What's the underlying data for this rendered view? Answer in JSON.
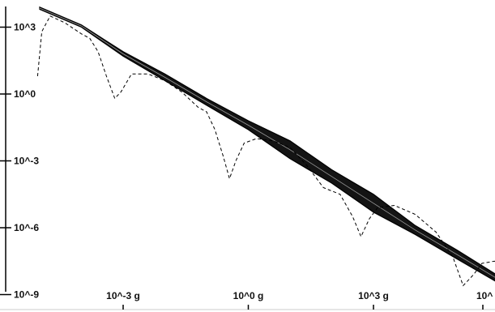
{
  "chart_data": {
    "type": "line",
    "title": "",
    "xlabel": "",
    "ylabel": "",
    "x_scale": "log",
    "y_scale": "log",
    "xlim": [
      "1e-5",
      "1e4"
    ],
    "ylim": [
      "1e-9",
      "1e4"
    ],
    "x_ticks": [
      {
        "value": "1e-3",
        "label": "10^-3 g"
      },
      {
        "value": "1e0",
        "label": "10^0 g"
      },
      {
        "value": "1e3",
        "label": "10^3 g"
      },
      {
        "value": "1e4",
        "label": "10^"
      }
    ],
    "y_ticks": [
      {
        "value": "1e3",
        "label": "10^3"
      },
      {
        "value": "1e0",
        "label": "10^0"
      },
      {
        "value": "1e-3",
        "label": "10^-3"
      },
      {
        "value": "1e-6",
        "label": "10^-6"
      },
      {
        "value": "1e-9",
        "label": "10^-9"
      }
    ],
    "grid": false,
    "legend": "none",
    "series": [
      {
        "style": "solid",
        "color": "#000000",
        "band_log10_upper": [
          [
            -5.0,
            3.9
          ],
          [
            -4.0,
            3.1
          ],
          [
            -3.0,
            1.9
          ],
          [
            -2.0,
            0.9
          ],
          [
            -1.0,
            -0.2
          ],
          [
            0.0,
            -1.2
          ],
          [
            1.0,
            -2.1
          ],
          [
            2.0,
            -3.4
          ],
          [
            3.0,
            -4.5
          ],
          [
            4.0,
            -5.9
          ],
          [
            5.0,
            -7.0
          ],
          [
            6.2,
            -8.4
          ]
        ],
        "band_log10_lower": [
          [
            -5.0,
            3.8
          ],
          [
            -4.0,
            3.0
          ],
          [
            -3.0,
            1.7
          ],
          [
            -2.0,
            0.6
          ],
          [
            -1.0,
            -0.5
          ],
          [
            0.0,
            -1.6
          ],
          [
            1.0,
            -2.9
          ],
          [
            2.0,
            -4.0
          ],
          [
            3.0,
            -5.3
          ],
          [
            4.0,
            -6.3
          ],
          [
            5.0,
            -7.4
          ],
          [
            6.2,
            -8.7
          ]
        ]
      },
      {
        "style": "dashed",
        "color": "#000000",
        "points_log10": [
          [
            -5.05,
            0.8
          ],
          [
            -4.95,
            2.8
          ],
          [
            -4.75,
            3.5
          ],
          [
            -4.4,
            3.2
          ],
          [
            -4.0,
            2.7
          ],
          [
            -3.8,
            2.5
          ],
          [
            -3.6,
            1.9
          ],
          [
            -3.4,
            0.8
          ],
          [
            -3.2,
            -0.2
          ],
          [
            -3.05,
            0.1
          ],
          [
            -2.8,
            0.9
          ],
          [
            -2.4,
            0.9
          ],
          [
            -2.0,
            0.6
          ],
          [
            -1.6,
            0.1
          ],
          [
            -1.2,
            -0.6
          ],
          [
            -1.0,
            -0.8
          ],
          [
            -0.8,
            -1.6
          ],
          [
            -0.6,
            -2.8
          ],
          [
            -0.45,
            -3.8
          ],
          [
            -0.3,
            -3.0
          ],
          [
            -0.1,
            -2.2
          ],
          [
            0.2,
            -2.0
          ],
          [
            0.6,
            -2.1
          ],
          [
            1.0,
            -2.4
          ],
          [
            1.4,
            -3.2
          ],
          [
            1.8,
            -4.2
          ],
          [
            2.2,
            -4.5
          ],
          [
            2.5,
            -5.5
          ],
          [
            2.7,
            -6.4
          ],
          [
            2.9,
            -5.6
          ],
          [
            3.1,
            -5.1
          ],
          [
            3.5,
            -5.0
          ],
          [
            4.0,
            -5.4
          ],
          [
            4.5,
            -6.2
          ],
          [
            4.9,
            -7.3
          ],
          [
            5.15,
            -8.6
          ],
          [
            5.4,
            -8.1
          ],
          [
            5.6,
            -7.6
          ],
          [
            5.9,
            -7.5
          ],
          [
            6.2,
            -7.7
          ]
        ]
      }
    ]
  }
}
